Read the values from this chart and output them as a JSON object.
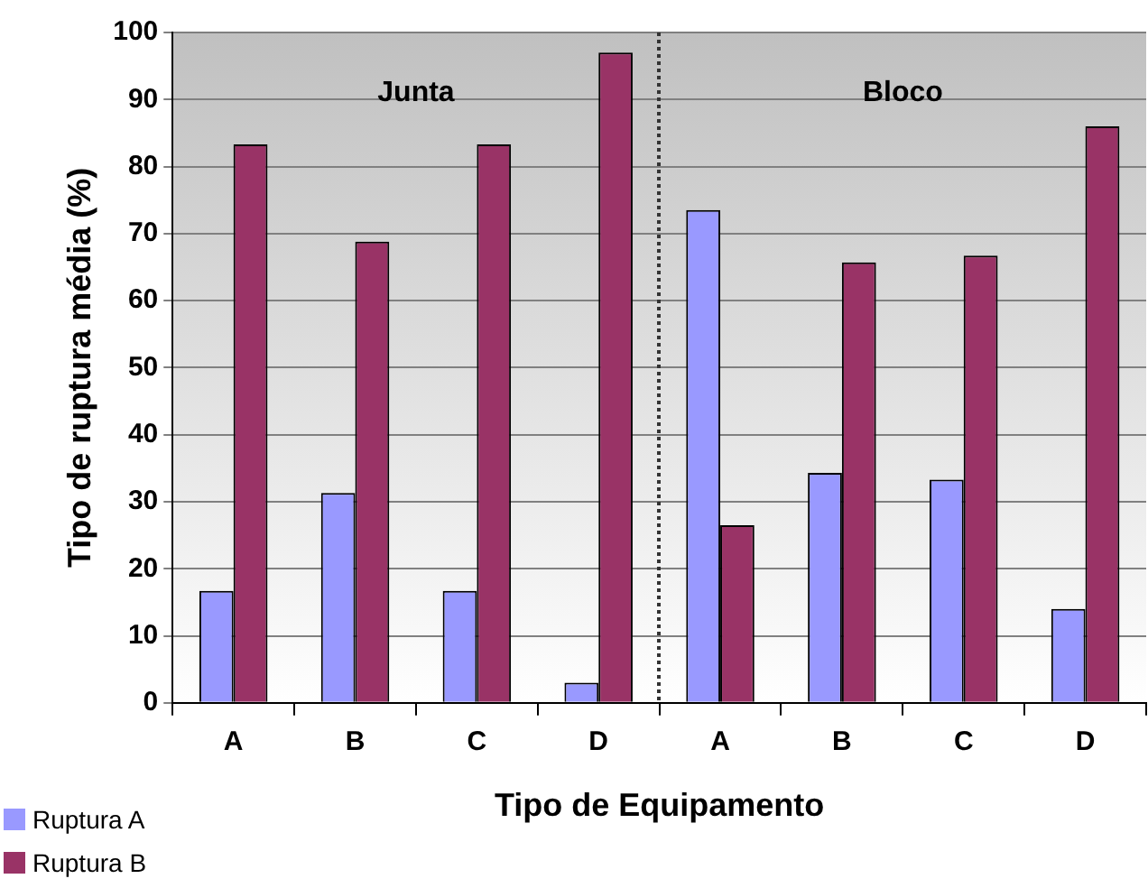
{
  "chart_data": {
    "type": "bar",
    "xlabel": "Tipo de Equipamento",
    "ylabel": "Tipo de ruptura média (%)",
    "categories": [
      "A",
      "B",
      "C",
      "D",
      "A",
      "B",
      "C",
      "D"
    ],
    "series": [
      {
        "name": "Ruptura A",
        "color": "#9999ff",
        "values": [
          16.7,
          31.3,
          16.7,
          3,
          73.5,
          34.3,
          33.3,
          14
        ]
      },
      {
        "name": "Ruptura B",
        "color": "#993366",
        "values": [
          83.3,
          68.8,
          83.3,
          97,
          26.5,
          65.7,
          66.7,
          86
        ]
      }
    ],
    "ylim": [
      0,
      100
    ],
    "yticks": [
      0,
      10,
      20,
      30,
      40,
      50,
      60,
      70,
      80,
      90,
      100
    ],
    "grid": "y",
    "legend": "bottom left",
    "annotations": [
      "Junta",
      "Bloco"
    ]
  }
}
